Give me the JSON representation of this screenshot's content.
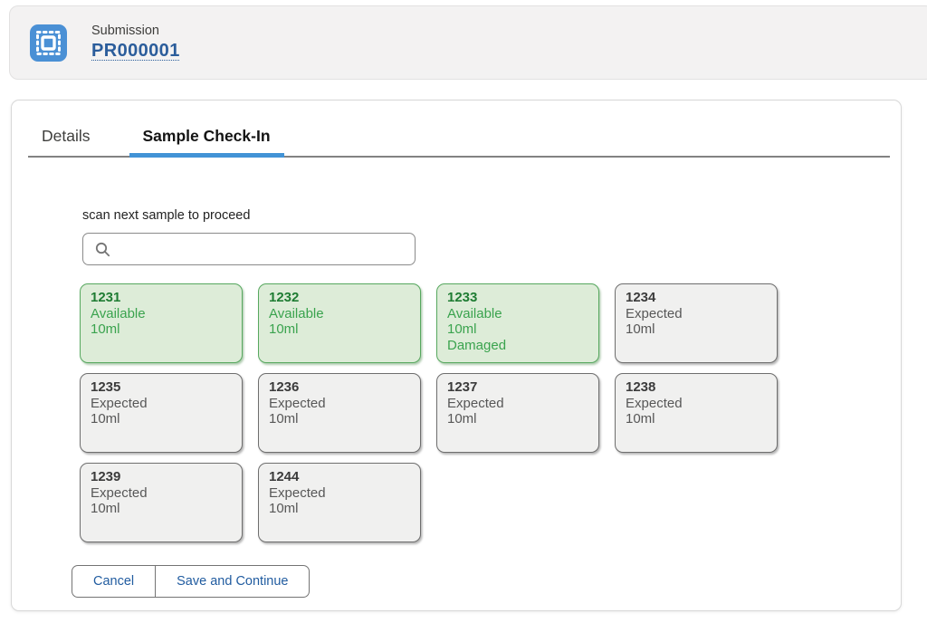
{
  "header": {
    "record_type": "Submission",
    "record_name": "PR000001",
    "icon": "stamp-icon"
  },
  "tabs": [
    {
      "label": "Details",
      "active": false
    },
    {
      "label": "Sample Check-In",
      "active": true
    }
  ],
  "checkin": {
    "scan_label": "scan next sample to proceed",
    "search": {
      "value": "",
      "placeholder": "",
      "icon": "search-icon"
    }
  },
  "samples": [
    {
      "id": "1231",
      "lines": [
        "Available",
        "10ml"
      ],
      "state": "available"
    },
    {
      "id": "1232",
      "lines": [
        "Available",
        "10ml"
      ],
      "state": "available"
    },
    {
      "id": "1233",
      "lines": [
        "Available",
        "10ml",
        "Damaged"
      ],
      "state": "available"
    },
    {
      "id": "1234",
      "lines": [
        "Expected",
        "10ml"
      ],
      "state": "expected"
    },
    {
      "id": "1235",
      "lines": [
        "Expected",
        "10ml"
      ],
      "state": "expected"
    },
    {
      "id": "1236",
      "lines": [
        "Expected",
        "10ml"
      ],
      "state": "expected"
    },
    {
      "id": "1237",
      "lines": [
        "Expected",
        "10ml"
      ],
      "state": "expected"
    },
    {
      "id": "1238",
      "lines": [
        "Expected",
        "10ml"
      ],
      "state": "expected"
    },
    {
      "id": "1239",
      "lines": [
        "Expected",
        "10ml"
      ],
      "state": "expected"
    },
    {
      "id": "1244",
      "lines": [
        "Expected",
        "10ml"
      ],
      "state": "expected"
    }
  ],
  "actions": {
    "cancel_label": "Cancel",
    "save_label": "Save and Continue"
  },
  "colors": {
    "icon_tile_blue": "#4a90d5",
    "record_link_blue": "#2b5d9b",
    "tab_underline_blue": "#4293d6",
    "available_border": "#57a85f",
    "available_bg": "#ddecd8",
    "available_text": "#3aa34e",
    "expected_border": "#6e6e6e",
    "expected_bg": "#f0f0ef",
    "expected_text": "#575757",
    "button_text_blue": "#215ca0"
  }
}
